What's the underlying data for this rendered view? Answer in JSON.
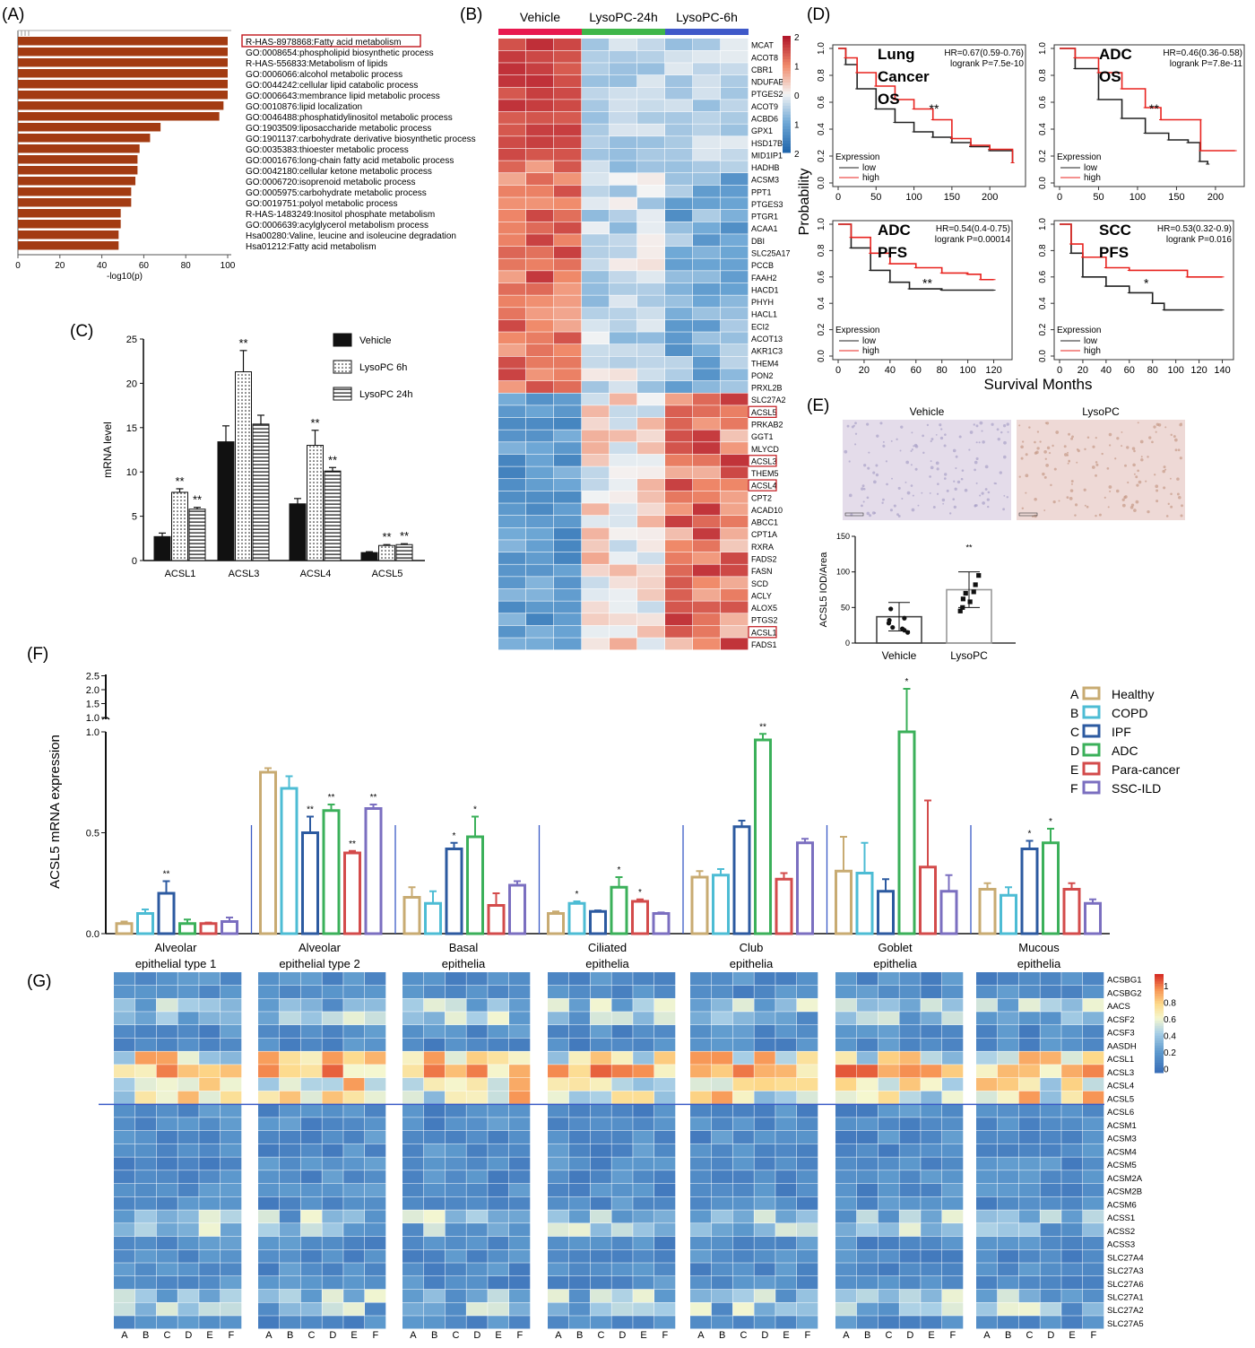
{
  "panels": {
    "A": "(A)",
    "B": "(B)",
    "C": "(C)",
    "D": "(D)",
    "E": "(E)",
    "F": "(F)",
    "G": "(G)"
  },
  "colors": {
    "bar_A": "#a33b12",
    "high": "#e8231f",
    "low": "#222222",
    "hm_hi": "#b2182b",
    "hm_mid": "#f7f7f7",
    "hm_lo": "#2166ac"
  },
  "chart_data": [
    {
      "id": "A",
      "type": "bar",
      "orientation": "horizontal",
      "xlabel": "-log10(p)",
      "xlim": [
        0,
        100
      ],
      "xticks": [
        0,
        20,
        40,
        60,
        80,
        100
      ],
      "highlighted": "R-HAS-8978868:Fatty acid metabolism",
      "categories": [
        "R-HAS-8978868:Fatty acid metabolism",
        "GO:0008654:phospholipid biosynthetic process",
        "R-HAS-556833:Metabolism of lipids",
        "GO:0006066:alcohol metabolic process",
        "GO:0044242:cellular lipid catabolic process",
        "GO:0006643:membrance lipid metabolic process",
        "GO:0010876:lipid localization",
        "GO:0046488:phosphatidylinositol metabolic process",
        "GO:1903509:liposaccharide metabolic process",
        "GO:1901137:carbohydrate derivative biosynthetic process",
        "GO:0035383:thioester metabolic process",
        "GO:0001676:long-chain fatty acid metabolic process",
        "GO:0042180:cellular ketone metabolic process",
        "GO:0006720:isoprenoid metabolic process",
        "GO:0005975:carbohydrate metabolic process",
        "GO:0019751:polyol metabolic process",
        "R-HAS-1483249:Inositol phosphate metabolism",
        "GO:0006639:acylglycerol metabolism process",
        "Hsa00280:Valine, leucine and isoleucine degradation",
        "Hsa01212:Fatty acid metabolism"
      ],
      "values": [
        100,
        100,
        100,
        100,
        100,
        100,
        98,
        96,
        68,
        63,
        58,
        57,
        57,
        56,
        54,
        54,
        49,
        49,
        48,
        48
      ]
    },
    {
      "id": "B",
      "type": "heatmap",
      "groups": [
        "Vehicle",
        "LysoPC-24h",
        "LysoPC-6h"
      ],
      "group_colors": [
        "#e8194f",
        "#3fb64a",
        "#3f59c9"
      ],
      "columns": 9,
      "rows": [
        "MCAT",
        "ACOT8",
        "CBR1",
        "NDUFAB1",
        "PTGES2",
        "ACOT9",
        "ACBD6",
        "GPX1",
        "HSD17B8",
        "MID1IP1",
        "HADHB",
        "ACSM3",
        "PPT1",
        "PTGES3",
        "PTGR1",
        "ACAA1",
        "DBI",
        "SLC25A17",
        "PCCB",
        "FAAH2",
        "HACD1",
        "PHYH",
        "HACL1",
        "ECI2",
        "ACOT13",
        "AKR1C3",
        "THEM4",
        "PON2",
        "PRXL2B",
        "SLC27A2",
        "ACSL5",
        "PRKAB2",
        "GGT1",
        "MLYCD",
        "ACSL3",
        "THEM5",
        "ACSL4",
        "CPT2",
        "ACAD10",
        "ABCC1",
        "CPT1A",
        "RXRA",
        "FADS2",
        "FASN",
        "SCD",
        "ACLY",
        "ALOX5",
        "PTGS2",
        "ACSL1",
        "FADS1"
      ],
      "boxed_rows": [
        "ACSL5",
        "ACSL3",
        "ACSL4",
        "ACSL1"
      ],
      "colorbar_ticks": [
        "2",
        "1",
        "0",
        "1",
        "2"
      ],
      "vrange": [
        -2,
        2
      ]
    },
    {
      "id": "C",
      "type": "bar",
      "ylabel": "mRNA level",
      "ylim": [
        0,
        25
      ],
      "yticks": [
        0,
        5,
        10,
        15,
        20,
        25
      ],
      "categories": [
        "ACSL1",
        "ACSL3",
        "ACSL4",
        "ACSL5"
      ],
      "series": [
        {
          "name": "Vehicle",
          "values": [
            2.7,
            13.4,
            6.4,
            0.9
          ],
          "errors": [
            0.4,
            1.8,
            0.6,
            0.1
          ],
          "sig": [
            "",
            "",
            "",
            ""
          ]
        },
        {
          "name": "LysoPC 6h",
          "values": [
            7.7,
            21.3,
            13.0,
            1.7
          ],
          "errors": [
            0.4,
            2.4,
            1.7,
            0.1
          ],
          "sig": [
            "**",
            "**",
            "**",
            "**"
          ]
        },
        {
          "name": "LysoPC 24h",
          "values": [
            5.8,
            15.4,
            10.1,
            1.8
          ],
          "errors": [
            0.2,
            1.0,
            0.4,
            0.1
          ],
          "sig": [
            "**",
            "",
            "**",
            "**"
          ]
        }
      ]
    },
    {
      "id": "D",
      "type": "line",
      "subtype": "kaplan-meier",
      "ylabel": "Probability",
      "xlabel": "Survival Months",
      "legend_title": "Expression",
      "legend": [
        "low",
        "high"
      ],
      "plots": [
        {
          "title": "Lung Cancer OS",
          "stats": [
            "HR=0.67(0.59-0.76)",
            "logrank P=7.5e-10"
          ],
          "sig": "**",
          "xlim": [
            0,
            240
          ],
          "xticks": [
            0,
            50,
            100,
            150,
            200
          ],
          "high": [
            [
              0,
              1
            ],
            [
              10,
              0.93
            ],
            [
              25,
              0.82
            ],
            [
              50,
              0.72
            ],
            [
              75,
              0.62
            ],
            [
              100,
              0.55
            ],
            [
              125,
              0.47
            ],
            [
              150,
              0.33
            ],
            [
              175,
              0.28
            ],
            [
              200,
              0.25
            ],
            [
              230,
              0.15
            ]
          ],
          "low": [
            [
              0,
              1
            ],
            [
              10,
              0.88
            ],
            [
              25,
              0.7
            ],
            [
              50,
              0.55
            ],
            [
              75,
              0.45
            ],
            [
              100,
              0.38
            ],
            [
              125,
              0.34
            ],
            [
              150,
              0.3
            ],
            [
              175,
              0.27
            ],
            [
              200,
              0.24
            ],
            [
              230,
              0.15
            ]
          ]
        },
        {
          "title": "ADC OS",
          "stats": [
            "HR=0.46(0.36-0.58)",
            "logrank P=7.8e-11"
          ],
          "sig": "**",
          "xlim": [
            0,
            230
          ],
          "xticks": [
            0,
            50,
            100,
            150,
            200
          ],
          "high": [
            [
              0,
              1
            ],
            [
              20,
              0.93
            ],
            [
              50,
              0.82
            ],
            [
              80,
              0.7
            ],
            [
              110,
              0.56
            ],
            [
              130,
              0.47
            ],
            [
              180,
              0.47
            ],
            [
              181,
              0.24
            ],
            [
              225,
              0.24
            ]
          ],
          "low": [
            [
              0,
              1
            ],
            [
              20,
              0.85
            ],
            [
              50,
              0.62
            ],
            [
              80,
              0.48
            ],
            [
              110,
              0.37
            ],
            [
              140,
              0.32
            ],
            [
              165,
              0.3
            ],
            [
              180,
              0.16
            ],
            [
              190,
              0.14
            ]
          ]
        },
        {
          "title": "ADC PFS",
          "stats": [
            "HR=0.54(0.4-0.75)",
            "logrank P=0.00014"
          ],
          "sig": "**",
          "xlim": [
            0,
            130
          ],
          "xticks": [
            0,
            20,
            40,
            60,
            80,
            100,
            120
          ],
          "high": [
            [
              0,
              1
            ],
            [
              10,
              0.9
            ],
            [
              25,
              0.78
            ],
            [
              40,
              0.7
            ],
            [
              60,
              0.67
            ],
            [
              80,
              0.63
            ],
            [
              100,
              0.62
            ],
            [
              110,
              0.58
            ],
            [
              120,
              0.58
            ]
          ],
          "low": [
            [
              0,
              1
            ],
            [
              10,
              0.82
            ],
            [
              25,
              0.65
            ],
            [
              40,
              0.56
            ],
            [
              55,
              0.51
            ],
            [
              80,
              0.5
            ],
            [
              100,
              0.5
            ],
            [
              120,
              0.5
            ]
          ]
        },
        {
          "title": "SCC PFS",
          "stats": [
            "HR=0.53(0.32-0.9)",
            "logrank P=0.016"
          ],
          "sig": "*",
          "xlim": [
            0,
            145
          ],
          "xticks": [
            0,
            20,
            40,
            60,
            80,
            100,
            120,
            140
          ],
          "high": [
            [
              0,
              1
            ],
            [
              10,
              0.85
            ],
            [
              20,
              0.75
            ],
            [
              40,
              0.67
            ],
            [
              60,
              0.65
            ],
            [
              80,
              0.65
            ],
            [
              100,
              0.65
            ],
            [
              110,
              0.6
            ],
            [
              140,
              0.6
            ]
          ],
          "low": [
            [
              0,
              1
            ],
            [
              10,
              0.78
            ],
            [
              20,
              0.6
            ],
            [
              40,
              0.53
            ],
            [
              60,
              0.48
            ],
            [
              80,
              0.4
            ],
            [
              90,
              0.35
            ],
            [
              140,
              0.35
            ]
          ]
        }
      ]
    },
    {
      "id": "E",
      "type": "bar",
      "ylabel": "ACSL5 IOD/Area",
      "ylim": [
        0,
        150
      ],
      "yticks": [
        0,
        50,
        100,
        150
      ],
      "image_titles": [
        "Vehicle",
        "LysoPC"
      ],
      "categories": [
        "Vehicle",
        "LysoPC"
      ],
      "values": [
        37,
        75
      ],
      "errors": [
        20,
        25
      ],
      "sig": [
        "",
        "**"
      ],
      "points": [
        [
          48,
          32,
          28,
          20,
          22,
          18,
          15,
          35
        ],
        [
          95,
          82,
          70,
          62,
          58,
          72,
          45,
          50
        ]
      ]
    },
    {
      "id": "F",
      "type": "bar",
      "ylabel": "ACSL5 mRNA expression",
      "ylim": [
        0,
        1.0
      ],
      "yticks": [
        "0.0",
        "0.5",
        "1.0"
      ],
      "break_ticks": [
        "1.0",
        "1.5",
        "2.0",
        "2.5"
      ],
      "categories": [
        "Alveolar epithelial type 1",
        "Alveolar epithelial type 2",
        "Basal epithelia",
        "Ciliated epithelia",
        "Club epithelia",
        "Goblet epithelia",
        "Mucous epithelia"
      ],
      "series": [
        {
          "key": "A",
          "name": "Healthy",
          "color": "#c8ab72",
          "values": [
            0.05,
            0.8,
            0.18,
            0.1,
            0.28,
            0.31,
            0.22
          ],
          "errors": [
            0.01,
            0.02,
            0.05,
            0.01,
            0.03,
            0.17,
            0.03
          ],
          "sig": [
            "",
            "",
            "",
            "",
            "",
            "",
            ""
          ]
        },
        {
          "key": "B",
          "name": "COPD",
          "color": "#4dbcd4",
          "values": [
            0.1,
            0.72,
            0.15,
            0.15,
            0.29,
            0.3,
            0.19
          ],
          "errors": [
            0.02,
            0.06,
            0.06,
            0.01,
            0.03,
            0.15,
            0.04
          ],
          "sig": [
            "",
            "",
            "",
            "*",
            "",
            "",
            ""
          ]
        },
        {
          "key": "C",
          "name": "IPF",
          "color": "#2c5aa0",
          "values": [
            0.2,
            0.5,
            0.42,
            0.11,
            0.53,
            0.21,
            0.42
          ],
          "errors": [
            0.06,
            0.08,
            0.03,
            0.005,
            0.03,
            0.06,
            0.04
          ],
          "sig": [
            "**",
            "**",
            "*",
            "",
            "",
            "",
            "*"
          ]
        },
        {
          "key": "D",
          "name": "ADC",
          "color": "#3bb05a",
          "values": [
            0.05,
            0.61,
            0.48,
            0.23,
            0.96,
            1.0,
            0.45
          ],
          "errors": [
            0.02,
            0.03,
            0.1,
            0.05,
            0.03,
            1.0,
            0.07
          ],
          "sig": [
            "",
            "**",
            "*",
            "*",
            "**",
            "*",
            "*"
          ]
        },
        {
          "key": "E",
          "name": "Para-cancer",
          "color": "#d34b4b",
          "values": [
            0.05,
            0.4,
            0.14,
            0.16,
            0.27,
            0.33,
            0.22
          ],
          "errors": [
            0.005,
            0.01,
            0.06,
            0.01,
            0.03,
            0.33,
            0.03
          ],
          "sig": [
            "",
            "**",
            "",
            "*",
            "",
            "",
            ""
          ]
        },
        {
          "key": "F",
          "name": "SSC-ILD",
          "color": "#7b6fc0",
          "values": [
            0.06,
            0.62,
            0.24,
            0.1,
            0.45,
            0.21,
            0.15
          ],
          "errors": [
            0.02,
            0.02,
            0.02,
            0.005,
            0.02,
            0.08,
            0.02
          ],
          "sig": [
            "",
            "**",
            "",
            "",
            "",
            "",
            ""
          ]
        }
      ]
    },
    {
      "id": "G",
      "type": "heatmap",
      "columns": [
        "A",
        "B",
        "C",
        "D",
        "E",
        "F"
      ],
      "panels": [
        "Alveolar epithelial type 1",
        "Alveolar epithelial type 2",
        "Basal epithelia",
        "Ciliated epithelia",
        "Club epithelia",
        "Goblet epithelia",
        "Mucous epithelia"
      ],
      "rows": [
        "ACSBG1",
        "ACSBG2",
        "AACS",
        "ACSF2",
        "ACSF3",
        "AASDH",
        "ACSL1",
        "ACSL3",
        "ACSL4",
        "ACSL5",
        "ACSL6",
        "ACSM1",
        "ACSM3",
        "ACSM4",
        "ACSM5",
        "ACSM2A",
        "ACSM2B",
        "ACSM6",
        "ACSS1",
        "ACSS2",
        "ACSS3",
        "SLC27A4",
        "SLC27A3",
        "SLC27A6",
        "SLC27A1",
        "SLC27A2",
        "SLC27A5"
      ],
      "colorbar_ticks": [
        "1",
        "0.8",
        "0.6",
        "0.4",
        "0.2",
        "0"
      ],
      "vrange": [
        0,
        1
      ]
    }
  ]
}
